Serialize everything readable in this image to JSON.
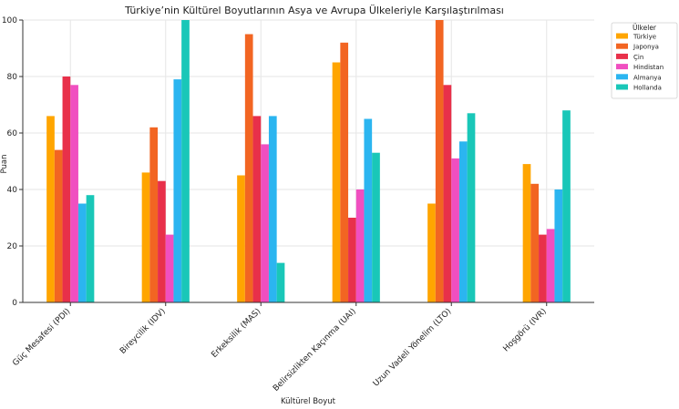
{
  "chart_data": {
    "type": "bar",
    "title": "Türkiye’nin Kültürel Boyutlarının Asya ve Avrupa Ülkeleriyle Karşılaştırılması",
    "xlabel": "Kültürel Boyut",
    "ylabel": "Puan",
    "ylim": [
      0,
      100
    ],
    "yticks": [
      0,
      20,
      40,
      60,
      80,
      100
    ],
    "grid": true,
    "legend_position": "top-right",
    "legend_title": "Ülkeler",
    "categories": [
      "Güç Mesafesi (PDI)",
      "Bireycilik (IDV)",
      "Erkeksilik (MAS)",
      "Belirsizlikten Kaçınma (UAI)",
      "Uzun Vadeli Yönelim (LTO)",
      "Hoşgörü (IVR)"
    ],
    "series": [
      {
        "name": "Türkiye",
        "color": "#FFA500",
        "values": [
          66,
          46,
          45,
          85,
          35,
          49
        ]
      },
      {
        "name": "Japonya",
        "color": "#F26522",
        "values": [
          54,
          62,
          95,
          92,
          100,
          42
        ]
      },
      {
        "name": "Çin",
        "color": "#E8304A",
        "values": [
          80,
          43,
          66,
          30,
          77,
          24
        ]
      },
      {
        "name": "Hindistan",
        "color": "#F04FC0",
        "values": [
          77,
          24,
          56,
          40,
          51,
          26
        ]
      },
      {
        "name": "Almanya",
        "color": "#2BB5F0",
        "values": [
          35,
          79,
          66,
          65,
          57,
          40
        ]
      },
      {
        "name": "Hollanda",
        "color": "#19C7B8",
        "values": [
          38,
          100,
          14,
          53,
          67,
          68
        ]
      }
    ]
  }
}
